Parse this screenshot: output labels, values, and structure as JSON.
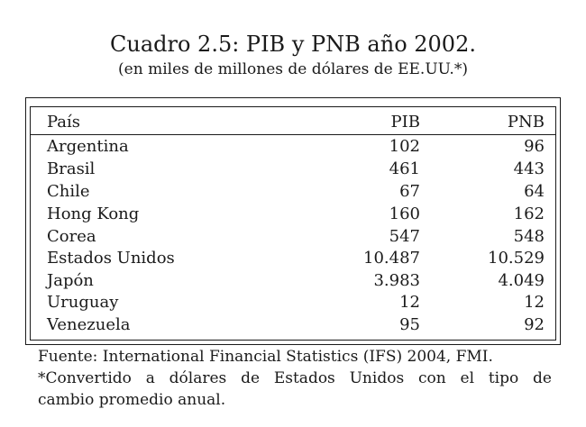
{
  "title": "Cuadro 2.5: PIB y PNB año 2002.",
  "subtitle": "(en miles de millones de dólares de EE.UU.*)",
  "table": {
    "headers": {
      "country": "País",
      "pib": "PIB",
      "pnb": "PNB"
    },
    "rows": [
      {
        "country": "Argentina",
        "pib": "102",
        "pnb": "96"
      },
      {
        "country": "Brasil",
        "pib": "461",
        "pnb": "443"
      },
      {
        "country": "Chile",
        "pib": "67",
        "pnb": "64"
      },
      {
        "country": "Hong Kong",
        "pib": "160",
        "pnb": "162"
      },
      {
        "country": "Corea",
        "pib": "547",
        "pnb": "548"
      },
      {
        "country": "Estados Unidos",
        "pib": "10.487",
        "pnb": "10.529"
      },
      {
        "country": "Japón",
        "pib": "3.983",
        "pnb": "4.049"
      },
      {
        "country": "Uruguay",
        "pib": "12",
        "pnb": "12"
      },
      {
        "country": "Venezuela",
        "pib": "95",
        "pnb": "92"
      }
    ]
  },
  "footnotes": {
    "source": "Fuente: International Financial Statistics (IFS) 2004, FMI.",
    "note_line1": "*Convertido a dólares de Estados Unidos con el tipo de",
    "note_line2": "cambio promedio anual."
  }
}
